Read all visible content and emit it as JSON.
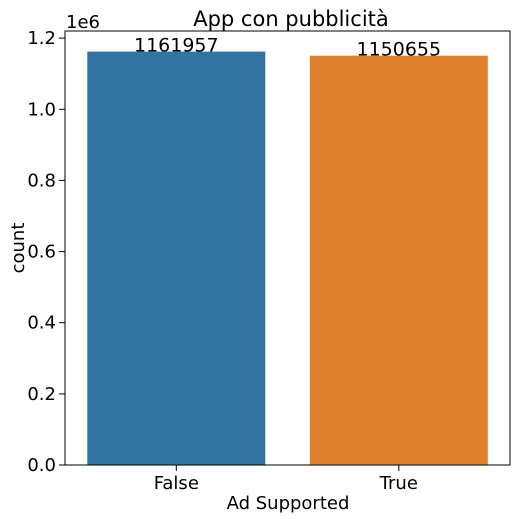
{
  "chart_data": {
    "type": "bar",
    "title": "App con pubblicità",
    "xlabel": "Ad Supported",
    "ylabel": "count",
    "categories": [
      "False",
      "True"
    ],
    "values": [
      1161957,
      1150655
    ],
    "data_labels": [
      "1161957",
      "1150655"
    ],
    "colors": [
      "#3274a1",
      "#e1812c"
    ],
    "ylim": [
      0,
      1220000
    ],
    "yticks": [
      0,
      200000,
      400000,
      600000,
      800000,
      1000000,
      1200000
    ],
    "ytick_labels": [
      "0.0",
      "0.2",
      "0.4",
      "0.6",
      "0.8",
      "1.0",
      "1.2"
    ],
    "y_offset_label": "1e6",
    "grid": false,
    "legend": "none"
  }
}
